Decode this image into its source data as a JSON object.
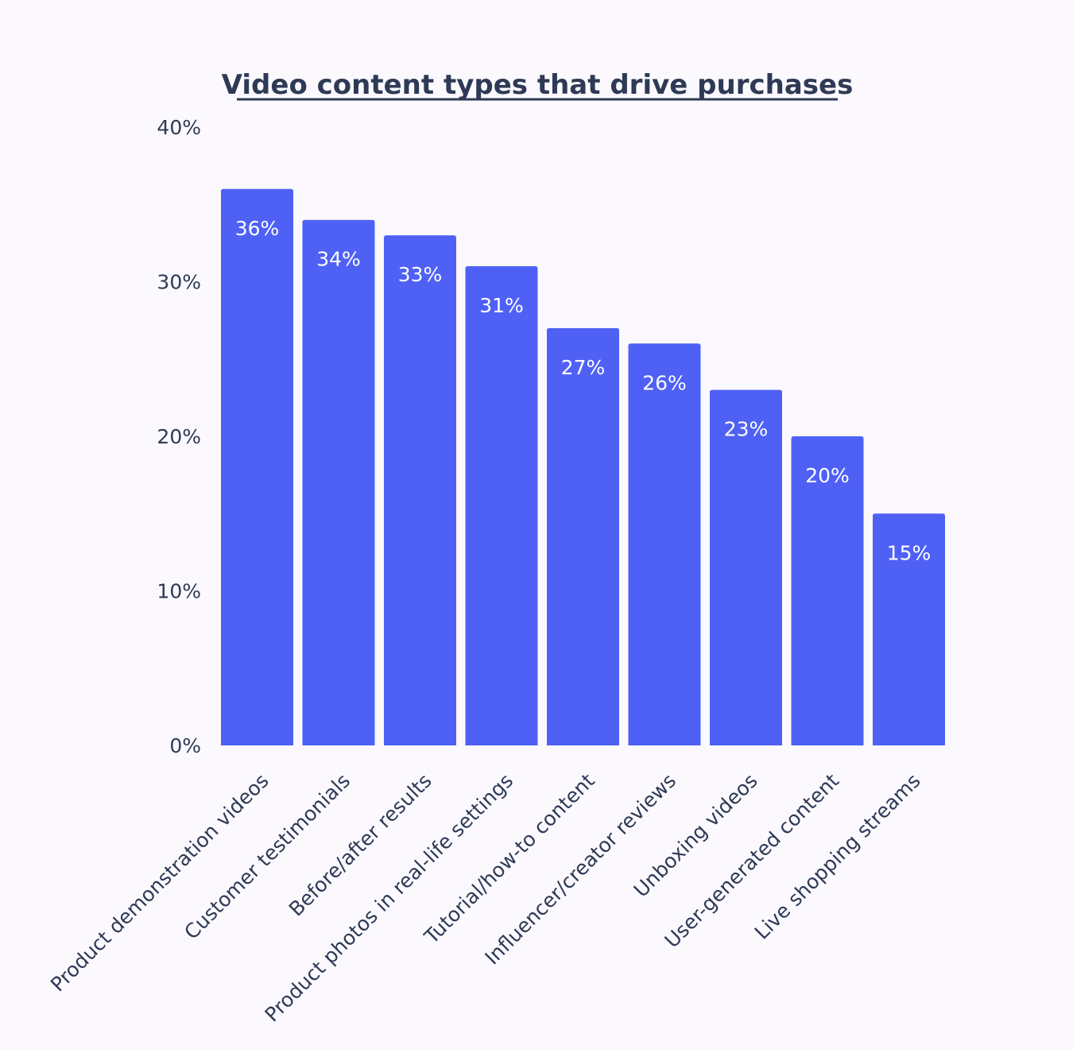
{
  "chart_data": {
    "type": "bar",
    "title": "Video content types that drive purchases",
    "xlabel": "",
    "ylabel": "",
    "ylim": [
      0,
      40
    ],
    "y_ticks": [
      "0%",
      "10%",
      "20%",
      "30%",
      "40%"
    ],
    "grid": false,
    "categories": [
      "Product demonstration videos",
      "Customer testimonials",
      "Before/after results",
      "Product photos in real-life settings",
      "Tutorial/how-to content",
      "Influencer/creator reviews",
      "Unboxing videos",
      "User-generated content",
      "Live shopping streams"
    ],
    "values": [
      36,
      34,
      33,
      31,
      27,
      26,
      23,
      20,
      15
    ],
    "value_labels": [
      "36%",
      "34%",
      "33%",
      "31%",
      "27%",
      "26%",
      "23%",
      "20%",
      "15%"
    ],
    "colors": {
      "bar": "#4f61f5",
      "text": "#2e3a55",
      "background": "#fbf9fe"
    }
  }
}
